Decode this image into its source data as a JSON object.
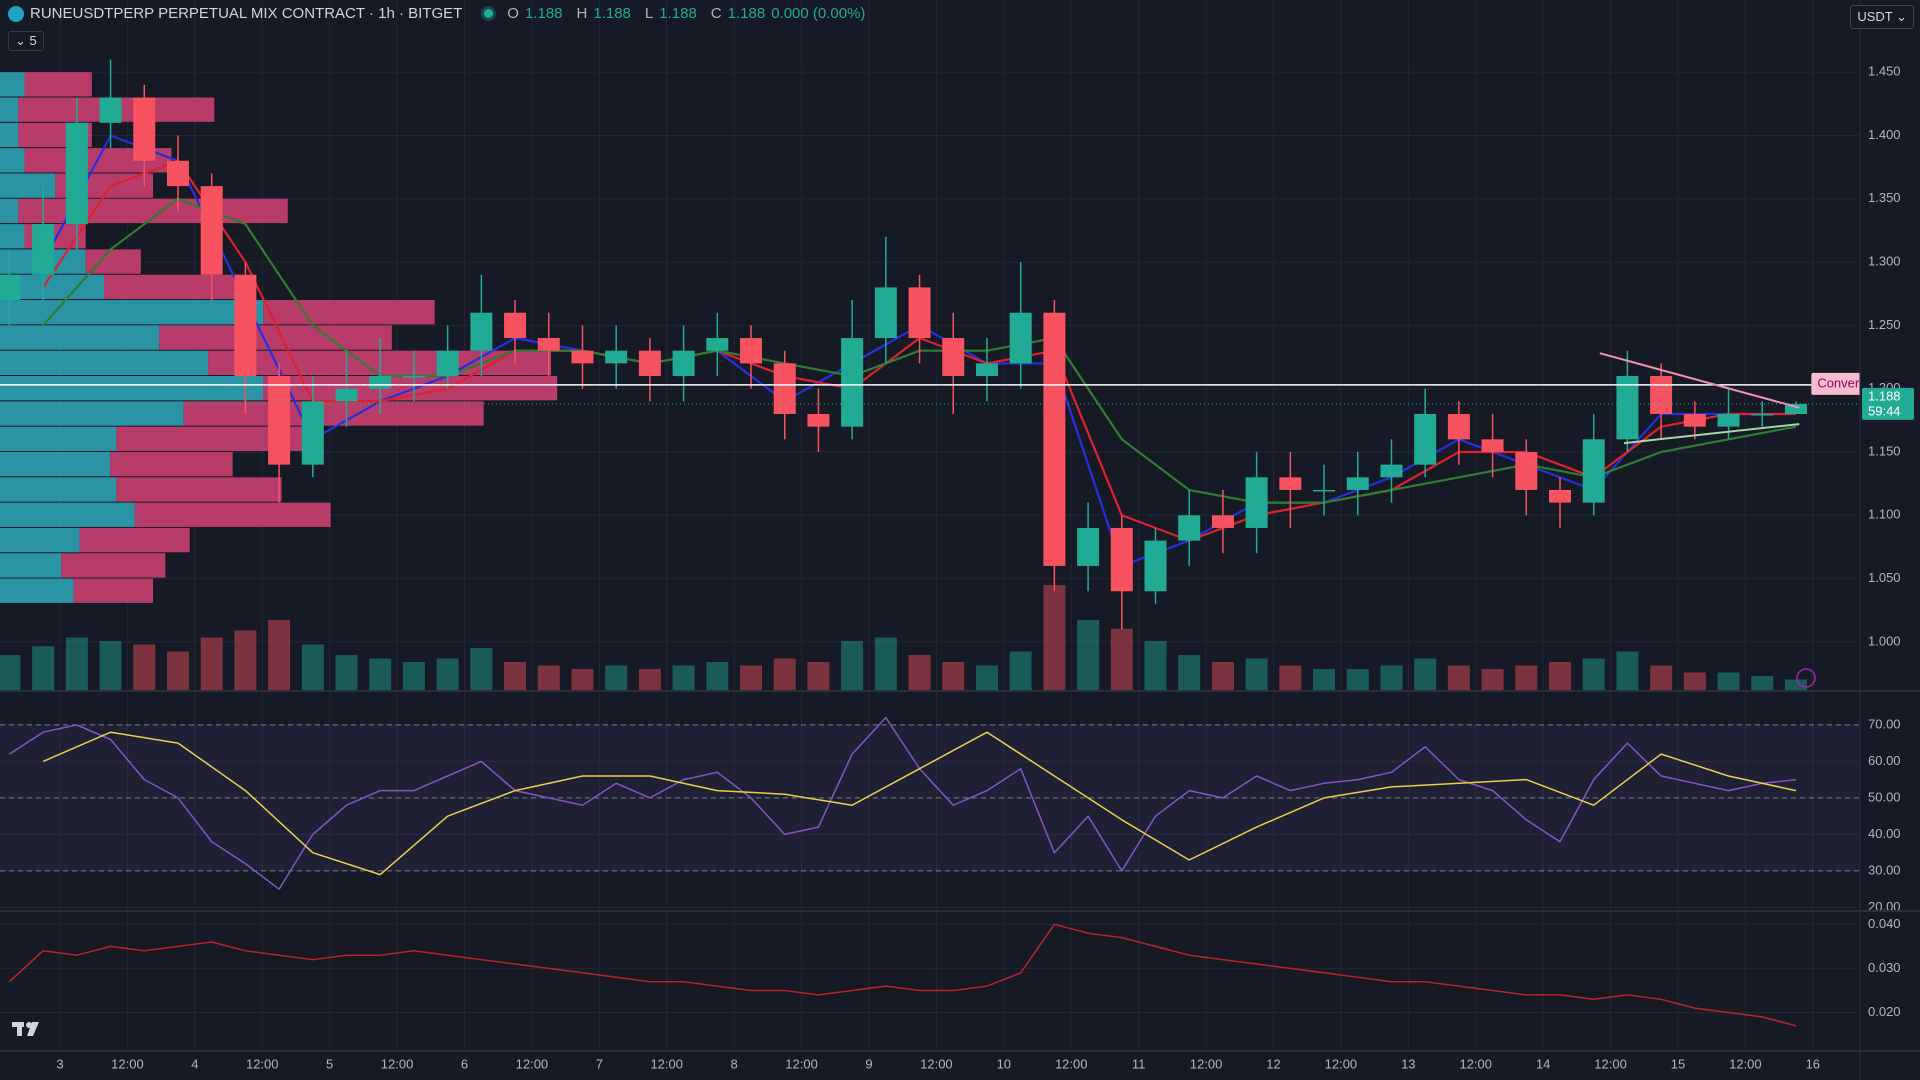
{
  "header": {
    "symbol": "RUNEUSDTPERP PERPETUAL MIX CONTRACT · 1h · BITGET",
    "ohlc": [
      {
        "key": "O",
        "value": 1.188
      },
      {
        "key": "H",
        "value": 1.188
      },
      {
        "key": "L",
        "value": 1.188
      },
      {
        "key": "C",
        "value": 1.188
      }
    ],
    "change": "0.000 (0.00%)",
    "indicators": 5,
    "currency": "USDT"
  },
  "chart_data": [
    {
      "type": "candlestick",
      "x": [
        2.625,
        2.875,
        3.125,
        3.375,
        3.625,
        3.875,
        4.125,
        4.375,
        4.625,
        4.875,
        5.125,
        5.375,
        5.625,
        5.875,
        6.125,
        6.375,
        6.625,
        6.875,
        7.125,
        7.375,
        7.625,
        7.875,
        8.125,
        8.375,
        8.625,
        8.875,
        9.125,
        9.375,
        9.625,
        9.875,
        10.125,
        10.375,
        10.625,
        10.875,
        11.125,
        11.375,
        11.625,
        11.875,
        12.125,
        12.375,
        12.625,
        12.875,
        13.125,
        13.375,
        13.625,
        13.875,
        14.125,
        14.375,
        14.625,
        14.875,
        15.125,
        15.375,
        15.625,
        15.875
      ],
      "open": [
        1.27,
        1.29,
        1.33,
        1.41,
        1.43,
        1.38,
        1.36,
        1.29,
        1.21,
        1.14,
        1.19,
        1.2,
        1.21,
        1.21,
        1.23,
        1.26,
        1.24,
        1.23,
        1.22,
        1.23,
        1.21,
        1.23,
        1.24,
        1.22,
        1.18,
        1.17,
        1.24,
        1.28,
        1.24,
        1.21,
        1.22,
        1.26,
        1.06,
        1.09,
        1.04,
        1.08,
        1.1,
        1.09,
        1.13,
        1.12,
        1.12,
        1.13,
        1.14,
        1.18,
        1.16,
        1.15,
        1.12,
        1.11,
        1.16,
        1.21,
        1.18,
        1.17,
        1.18,
        1.18
      ],
      "high": [
        1.31,
        1.36,
        1.43,
        1.46,
        1.44,
        1.4,
        1.37,
        1.3,
        1.22,
        1.21,
        1.23,
        1.24,
        1.23,
        1.25,
        1.29,
        1.27,
        1.26,
        1.25,
        1.25,
        1.24,
        1.25,
        1.26,
        1.25,
        1.23,
        1.2,
        1.27,
        1.32,
        1.29,
        1.26,
        1.24,
        1.3,
        1.27,
        1.11,
        1.1,
        1.09,
        1.12,
        1.12,
        1.15,
        1.15,
        1.14,
        1.15,
        1.16,
        1.2,
        1.19,
        1.18,
        1.16,
        1.13,
        1.18,
        1.23,
        1.22,
        1.19,
        1.2,
        1.19,
        1.19
      ],
      "low": [
        1.25,
        1.27,
        1.31,
        1.39,
        1.36,
        1.34,
        1.27,
        1.18,
        1.11,
        1.13,
        1.17,
        1.18,
        1.19,
        1.2,
        1.21,
        1.22,
        1.21,
        1.2,
        1.2,
        1.19,
        1.19,
        1.21,
        1.2,
        1.16,
        1.15,
        1.16,
        1.22,
        1.22,
        1.18,
        1.19,
        1.2,
        1.04,
        1.04,
        1.01,
        1.03,
        1.06,
        1.07,
        1.07,
        1.09,
        1.1,
        1.1,
        1.11,
        1.13,
        1.14,
        1.13,
        1.1,
        1.09,
        1.1,
        1.15,
        1.16,
        1.16,
        1.16,
        1.17,
        1.18
      ],
      "close": [
        1.29,
        1.33,
        1.41,
        1.43,
        1.38,
        1.36,
        1.29,
        1.21,
        1.14,
        1.19,
        1.2,
        1.21,
        1.21,
        1.23,
        1.26,
        1.24,
        1.23,
        1.22,
        1.23,
        1.21,
        1.23,
        1.24,
        1.22,
        1.18,
        1.17,
        1.24,
        1.28,
        1.24,
        1.21,
        1.22,
        1.26,
        1.06,
        1.09,
        1.04,
        1.08,
        1.1,
        1.09,
        1.13,
        1.12,
        1.12,
        1.13,
        1.14,
        1.18,
        1.16,
        1.15,
        1.12,
        1.11,
        1.16,
        1.21,
        1.18,
        1.17,
        1.18,
        1.18,
        1.188
      ],
      "volume": [
        20,
        25,
        30,
        28,
        26,
        22,
        30,
        34,
        40,
        26,
        20,
        18,
        16,
        18,
        24,
        16,
        14,
        12,
        14,
        12,
        14,
        16,
        14,
        18,
        16,
        28,
        30,
        20,
        16,
        14,
        22,
        60,
        40,
        35,
        28,
        20,
        16,
        18,
        14,
        12,
        12,
        14,
        18,
        14,
        12,
        14,
        16,
        18,
        22,
        14,
        10,
        10,
        8,
        6
      ],
      "up_color": "#22ab94",
      "down_color": "#f7525f",
      "ma_x": [
        2.875,
        3.375,
        3.875,
        4.375,
        4.875,
        5.375,
        5.875,
        6.375,
        6.875,
        7.375,
        7.875,
        8.375,
        8.875,
        9.375,
        9.875,
        10.375,
        10.875,
        11.375,
        11.875,
        12.375,
        12.875,
        13.375,
        13.875,
        14.375,
        14.875,
        15.375,
        15.875
      ],
      "lines": [
        {
          "color": "#2430e0",
          "values": [
            1.3,
            1.4,
            1.38,
            1.27,
            1.16,
            1.19,
            1.21,
            1.24,
            1.23,
            1.22,
            1.23,
            1.19,
            1.22,
            1.25,
            1.22,
            1.22,
            1.06,
            1.08,
            1.11,
            1.11,
            1.13,
            1.16,
            1.14,
            1.12,
            1.18,
            1.18,
            1.18
          ]
        },
        {
          "color": "#e0202d",
          "values": [
            1.28,
            1.36,
            1.38,
            1.3,
            1.19,
            1.19,
            1.2,
            1.23,
            1.23,
            1.22,
            1.23,
            1.21,
            1.2,
            1.24,
            1.22,
            1.23,
            1.1,
            1.08,
            1.1,
            1.11,
            1.12,
            1.15,
            1.15,
            1.13,
            1.17,
            1.18,
            1.18
          ]
        },
        {
          "color": "#2e7d32",
          "values": [
            1.25,
            1.31,
            1.35,
            1.33,
            1.25,
            1.21,
            1.21,
            1.23,
            1.23,
            1.22,
            1.23,
            1.22,
            1.21,
            1.23,
            1.23,
            1.24,
            1.16,
            1.12,
            1.11,
            1.11,
            1.12,
            1.13,
            1.14,
            1.13,
            1.15,
            1.16,
            1.17
          ]
        }
      ],
      "volume_profile": {
        "up_color": "#2fb3c4",
        "down_color": "#e0457b",
        "rows": [
          {
            "price": 1.44,
            "up": 20,
            "down": 55
          },
          {
            "price": 1.42,
            "up": 15,
            "down": 160
          },
          {
            "price": 1.4,
            "up": 15,
            "down": 60
          },
          {
            "price": 1.38,
            "up": 20,
            "down": 120
          },
          {
            "price": 1.36,
            "up": 45,
            "down": 80
          },
          {
            "price": 1.34,
            "up": 15,
            "down": 220
          },
          {
            "price": 1.32,
            "up": 20,
            "down": 50
          },
          {
            "price": 1.3,
            "up": 70,
            "down": 45
          },
          {
            "price": 1.28,
            "up": 85,
            "down": 110
          },
          {
            "price": 1.26,
            "up": 215,
            "down": 140
          },
          {
            "price": 1.24,
            "up": 130,
            "down": 190
          },
          {
            "price": 1.22,
            "up": 170,
            "down": 280
          },
          {
            "price": 1.2,
            "up": 215,
            "down": 240
          },
          {
            "price": 1.18,
            "up": 150,
            "down": 245
          },
          {
            "price": 1.16,
            "up": 95,
            "down": 160
          },
          {
            "price": 1.14,
            "up": 90,
            "down": 100
          },
          {
            "price": 1.12,
            "up": 95,
            "down": 135
          },
          {
            "price": 1.1,
            "up": 110,
            "down": 160
          },
          {
            "price": 1.08,
            "up": 65,
            "down": 90
          },
          {
            "price": 1.06,
            "up": 50,
            "down": 85
          },
          {
            "price": 1.04,
            "up": 60,
            "down": 65
          }
        ]
      },
      "horizontal_line": 1.203,
      "pattern": {
        "label": "Converging",
        "upper": {
          "x": [
            14.42,
            15.9
          ],
          "y": [
            1.228,
            1.185
          ]
        },
        "lower": {
          "x": [
            14.6,
            15.9
          ],
          "y": [
            1.157,
            1.172
          ]
        }
      },
      "countdown": "59:44",
      "xlim": [
        2.555,
        16.35
      ],
      "ylim": [
        0.962,
        1.507
      ],
      "xticks": [
        3,
        {
          "value": 3.5,
          "label": "12:00"
        },
        4,
        {
          "value": 4.5,
          "label": "12:00"
        },
        5,
        {
          "value": 5.5,
          "label": "12:00"
        },
        6,
        {
          "value": 6.5,
          "label": "12:00"
        },
        7,
        {
          "value": 7.5,
          "label": "12:00"
        },
        8,
        {
          "value": 8.5,
          "label": "12:00"
        },
        9,
        {
          "value": 9.5,
          "label": "12:00"
        },
        10,
        {
          "value": 10.5,
          "label": "12:00"
        },
        11,
        {
          "value": 11.5,
          "label": "12:00"
        },
        12,
        {
          "value": 12.5,
          "label": "12:00"
        },
        13,
        {
          "value": 13.5,
          "label": "12:00"
        },
        14,
        {
          "value": 14.5,
          "label": "12:00"
        },
        15,
        {
          "value": 15.5,
          "label": "12:00"
        },
        16
      ],
      "yticks": [
        {
          "value": 1.0,
          "label": "1.000"
        },
        {
          "value": 1.05,
          "label": "1.050"
        },
        {
          "value": 1.1,
          "label": "1.100"
        },
        {
          "value": 1.15,
          "label": "1.150"
        },
        {
          "value": 1.2,
          "label": "1.200"
        },
        {
          "value": 1.25,
          "label": "1.250"
        },
        {
          "value": 1.3,
          "label": "1.300"
        },
        {
          "value": 1.35,
          "label": "1.350"
        },
        {
          "value": 1.4,
          "label": "1.400"
        },
        {
          "value": 1.45,
          "label": "1.450"
        }
      ],
      "grid": true
    },
    {
      "type": "line",
      "x": [
        2.625,
        2.875,
        3.125,
        3.375,
        3.625,
        3.875,
        4.125,
        4.375,
        4.625,
        4.875,
        5.125,
        5.375,
        5.625,
        5.875,
        6.125,
        6.375,
        6.625,
        6.875,
        7.125,
        7.375,
        7.625,
        7.875,
        8.125,
        8.375,
        8.625,
        8.875,
        9.125,
        9.375,
        9.625,
        9.875,
        10.125,
        10.375,
        10.625,
        10.875,
        11.125,
        11.375,
        11.625,
        11.875,
        12.125,
        12.375,
        12.625,
        12.875,
        13.125,
        13.375,
        13.625,
        13.875,
        14.125,
        14.375,
        14.625,
        14.875,
        15.125,
        15.375,
        15.625,
        15.875
      ],
      "series": [
        {
          "color": "#7e57c2",
          "values": [
            62,
            68,
            70,
            66,
            55,
            50,
            38,
            32,
            25,
            40,
            48,
            52,
            52,
            56,
            60,
            52,
            50,
            48,
            54,
            50,
            55,
            57,
            50,
            40,
            42,
            62,
            72,
            58,
            48,
            52,
            58,
            35,
            45,
            30,
            45,
            52,
            50,
            56,
            52,
            54,
            55,
            57,
            64,
            55,
            52,
            44,
            38,
            55,
            65,
            56,
            54,
            52,
            54,
            55
          ]
        }
      ],
      "ma": {
        "color": "#e8cf4a",
        "x": [
          2.875,
          3.375,
          3.875,
          4.375,
          4.875,
          5.375,
          5.875,
          6.375,
          6.875,
          7.375,
          7.875,
          8.375,
          8.875,
          9.375,
          9.875,
          10.375,
          10.875,
          11.375,
          11.875,
          12.375,
          12.875,
          13.375,
          13.875,
          14.375,
          14.875,
          15.375,
          15.875
        ],
        "values": [
          60,
          68,
          65,
          52,
          35,
          29,
          45,
          52,
          56,
          56,
          52,
          51,
          48,
          58,
          68,
          56,
          44,
          33,
          42,
          50,
          53,
          54,
          55,
          48,
          62,
          56,
          52
        ]
      },
      "band_lines": [
        70,
        50,
        30
      ],
      "band_color": "#7e57c2",
      "ylim": [
        19.3,
        79
      ],
      "yticks": [
        {
          "value": 20,
          "label": "20.00"
        },
        {
          "value": 30,
          "label": "30.00"
        },
        {
          "value": 40,
          "label": "40.00"
        },
        {
          "value": 50,
          "label": "50.00"
        },
        {
          "value": 60,
          "label": "60.00"
        },
        {
          "value": 70,
          "label": "70.00"
        }
      ],
      "grid": true
    },
    {
      "type": "line",
      "x": [
        2.625,
        2.875,
        3.125,
        3.375,
        3.625,
        3.875,
        4.125,
        4.375,
        4.625,
        4.875,
        5.125,
        5.375,
        5.625,
        5.875,
        6.125,
        6.375,
        6.625,
        6.875,
        7.125,
        7.375,
        7.625,
        7.875,
        8.125,
        8.375,
        8.625,
        8.875,
        9.125,
        9.375,
        9.625,
        9.875,
        10.125,
        10.375,
        10.625,
        10.875,
        11.125,
        11.375,
        11.625,
        11.875,
        12.125,
        12.375,
        12.625,
        12.875,
        13.125,
        13.375,
        13.625,
        13.875,
        14.125,
        14.375,
        14.625,
        14.875,
        15.125,
        15.375,
        15.625,
        15.875
      ],
      "series": [
        {
          "color": "#b8242f",
          "values": [
            0.027,
            0.034,
            0.033,
            0.035,
            0.034,
            0.035,
            0.036,
            0.034,
            0.033,
            0.032,
            0.033,
            0.033,
            0.034,
            0.033,
            0.032,
            0.031,
            0.03,
            0.029,
            0.028,
            0.027,
            0.027,
            0.026,
            0.025,
            0.025,
            0.024,
            0.025,
            0.026,
            0.025,
            0.025,
            0.026,
            0.029,
            0.04,
            0.038,
            0.037,
            0.035,
            0.033,
            0.032,
            0.031,
            0.03,
            0.029,
            0.028,
            0.027,
            0.027,
            0.026,
            0.025,
            0.024,
            0.024,
            0.023,
            0.024,
            0.023,
            0.021,
            0.02,
            0.019,
            0.017
          ]
        }
      ],
      "ylim": [
        0.0115,
        0.0428
      ],
      "yticks": [
        {
          "value": 0.02,
          "label": "0.020"
        },
        {
          "value": 0.03,
          "label": "0.030"
        },
        {
          "value": 0.04,
          "label": "0.040"
        }
      ],
      "grid": true
    }
  ]
}
